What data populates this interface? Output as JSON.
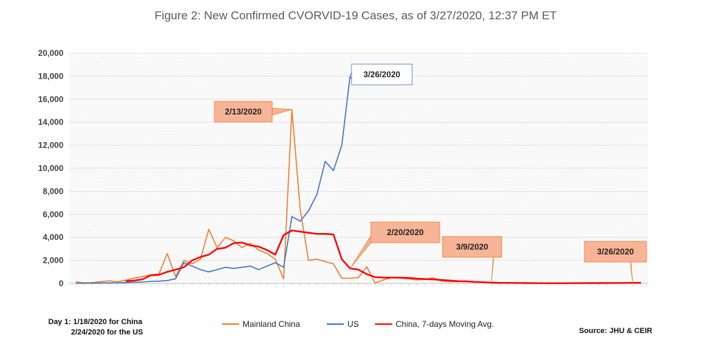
{
  "chart_data": {
    "type": "line",
    "title": "Figure 2: New Confirmed CVORVID-19 Cases, as of 3/27/2020, 12:37 PM ET",
    "xlabel": "",
    "ylabel": "",
    "ylim": [
      0,
      20000
    ],
    "yticks": [
      "0",
      "2,000",
      "4,000",
      "6,000",
      "8,000",
      "10,000",
      "12,000",
      "14,000",
      "16,000",
      "18,000",
      "20,000"
    ],
    "ytick_values": [
      0,
      2000,
      4000,
      6000,
      8000,
      10000,
      12000,
      14000,
      16000,
      18000,
      20000
    ],
    "x_count": 69,
    "grid": true,
    "legend_position": "bottom",
    "series": [
      {
        "name": "Mainland China",
        "color": "#ED7D31",
        "x_start": 1,
        "values": [
          130,
          50,
          80,
          150,
          230,
          150,
          280,
          460,
          600,
          750,
          800,
          2600,
          600,
          2000,
          1700,
          2100,
          4700,
          3100,
          4000,
          3700,
          3100,
          3500,
          2900,
          2600,
          2100,
          400,
          15100,
          6400,
          2000,
          2100,
          1900,
          1700,
          450,
          450,
          500,
          1450,
          50,
          300,
          500,
          450,
          400,
          300,
          350,
          500,
          200,
          150,
          150,
          150,
          120,
          100,
          60,
          40,
          30,
          25,
          20,
          20,
          20,
          15,
          20,
          20,
          25,
          30,
          35,
          40,
          45,
          45,
          45,
          50,
          60
        ]
      },
      {
        "name": "US",
        "color": "#4472C4",
        "x_start": 1,
        "values": [
          20,
          10,
          20,
          40,
          40,
          60,
          80,
          100,
          120,
          180,
          200,
          250,
          400,
          1800,
          1500,
          1200,
          1000,
          1200,
          1400,
          1300,
          1400,
          1500,
          1200,
          1500,
          1800,
          1400,
          5800,
          5400,
          6300,
          7700,
          10600,
          9800,
          12000,
          18000
        ]
      },
      {
        "name": "China, 7-days Moving Avg.",
        "color": "#FF0000",
        "x_start": 7,
        "values": [
          200,
          250,
          350,
          700,
          750,
          1000,
          1200,
          1400,
          2000,
          2300,
          2500,
          3000,
          3100,
          3500,
          3550,
          3300,
          3200,
          2900,
          2500,
          4200,
          4600,
          4500,
          4400,
          4300,
          4300,
          4250,
          2100,
          1300,
          1200,
          800,
          550,
          500,
          500,
          500,
          480,
          420,
          380,
          350,
          300,
          250,
          200,
          180,
          130,
          110,
          70,
          50,
          50,
          40,
          30,
          25,
          20,
          20,
          20,
          20,
          22,
          25,
          28,
          30,
          33,
          36,
          40,
          45,
          55
        ]
      }
    ],
    "annotations": [
      {
        "label": "3/26/2020",
        "series": "US",
        "index": 34
      },
      {
        "label": "2/13/2020",
        "series": "Mainland China",
        "index": 27
      },
      {
        "label": "2/20/2020",
        "series": "China, 7-days Moving Avg.",
        "index": 34
      },
      {
        "label": "3/9/2020",
        "series": "China, 7-days Moving Avg.",
        "index": 51
      },
      {
        "label": "3/26/2020",
        "series": "China, 7-days Moving Avg.",
        "index": 68
      }
    ]
  },
  "notes": {
    "day1_line1": "Day 1:  1/18/2020 for China",
    "day1_line2": "2/24/2020  for the US",
    "source": "Source: JHU & CEIR"
  },
  "colors": {
    "callout_fill": "#F8B496",
    "callout_stroke": "#ED7D31",
    "us_callout_fill": "#FFFFFF",
    "us_callout_stroke": "#4472C4",
    "grid": "#DCDCDC"
  }
}
